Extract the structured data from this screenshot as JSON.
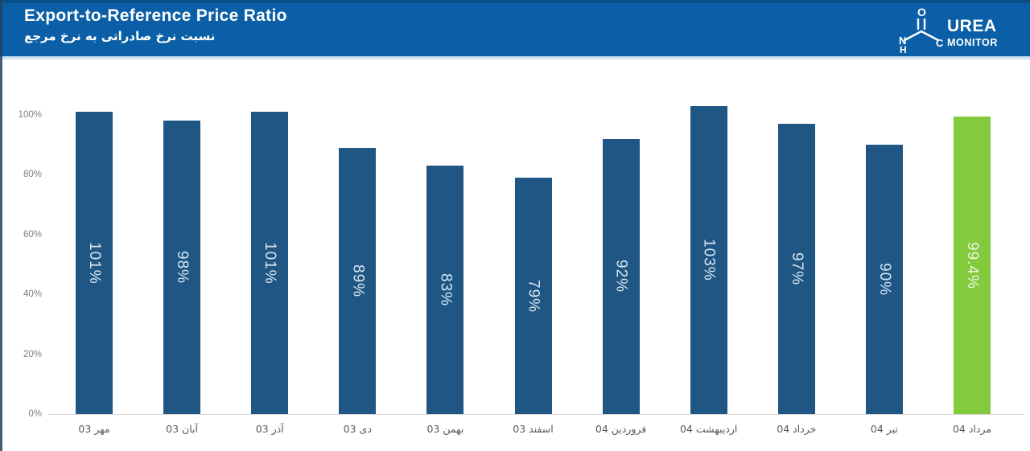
{
  "header": {
    "title": "Export-to-Reference Price Ratio",
    "subtitle_fa": "نسبت نرخ صادراتی به نرخ مرجع",
    "logo": {
      "brand_line1": "UREA",
      "brand_line2": "MONITOR",
      "atom_o": "O",
      "atom_n": "N",
      "atom_h": "H",
      "atom_c": "C"
    }
  },
  "colors": {
    "header_bg": "#0b5fa6",
    "bar_blue": "#1f5684",
    "bar_green": "#84ca3d",
    "y_tick_text": "#7f7f7f",
    "x_label_text": "#595959",
    "bar_label_text": "#d7e6f2",
    "axis_line": "#d6d6d6"
  },
  "chart_data": {
    "type": "bar",
    "title": "Export-to-Reference Price Ratio",
    "title_fa": "نسبت نرخ صادراتی به نرخ مرجع",
    "categories": [
      "مهر 03",
      "آبان 03",
      "آذر 03",
      "دی 03",
      "بهمن 03",
      "اسفند 03",
      "فروردین 04",
      "اردیبهشت 04",
      "خرداد 04",
      "تیر 04",
      "مرداد 04"
    ],
    "values": [
      101,
      98,
      101,
      89,
      83,
      79,
      92,
      103,
      97,
      90,
      99.4
    ],
    "data_labels": [
      "101%",
      "98%",
      "101%",
      "89%",
      "83%",
      "79%",
      "92%",
      "103%",
      "97%",
      "90%",
      "99.4%"
    ],
    "highlight_index": 10,
    "bar_color": "#1f5684",
    "highlight_color": "#84ca3d",
    "y_ticks": [
      {
        "label": "0%",
        "value": 0
      },
      {
        "label": "20%",
        "value": 20
      },
      {
        "label": "40%",
        "value": 40
      },
      {
        "label": "60%",
        "value": 60
      },
      {
        "label": "80%",
        "value": 80
      },
      {
        "label": "100%",
        "value": 100
      }
    ],
    "ylim": [
      0,
      110
    ],
    "xlabel": "",
    "ylabel": "",
    "grid": false,
    "legend": "none",
    "data_label_orientation": "vertical-rotated-down"
  }
}
